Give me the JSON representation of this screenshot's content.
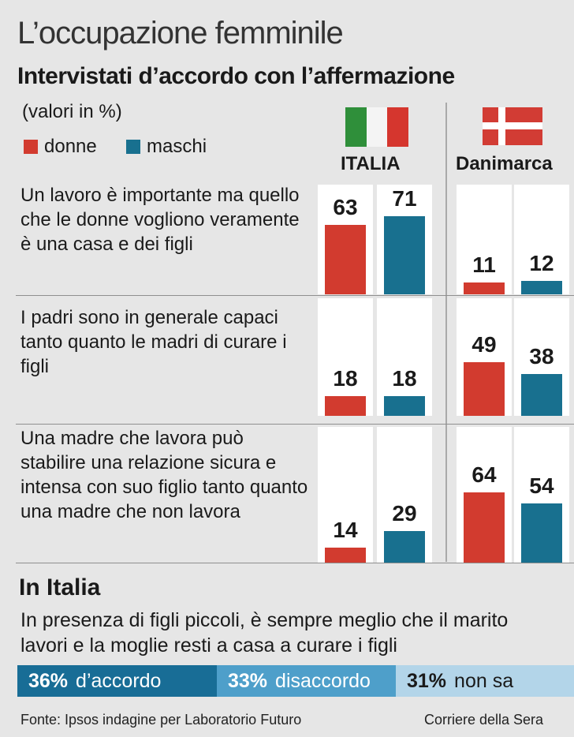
{
  "header": {
    "title": "L’occupazione femminile",
    "subtitle": "Intervistati d’accordo con l’affermazione",
    "unit": "(valori in %)"
  },
  "legend": {
    "donne": "donne",
    "maschi": "maschi"
  },
  "colors": {
    "donne": "#d23b2f",
    "maschi": "#18708f",
    "italy_green": "#2f8f3a",
    "italy_white": "#f4f4f4",
    "italy_red": "#d5362e",
    "dk_red": "#d23c34",
    "dk_white": "#ffffff"
  },
  "chart_data": {
    "type": "bar",
    "title": "Intervistati d’accordo con l’affermazione",
    "unit": "(valori in %)",
    "groups": [
      "ITALIA",
      "Danimarca"
    ],
    "series": [
      {
        "name": "donne",
        "color": "#d23b2f"
      },
      {
        "name": "maschi",
        "color": "#18708f"
      }
    ],
    "ylim": [
      0,
      100
    ],
    "categories": [
      {
        "label": "Un lavoro è importante ma quello che le donne vogliono veramente è una casa e dei figli",
        "ITALIA": {
          "donne": 63,
          "maschi": 71
        },
        "Danimarca": {
          "donne": 11,
          "maschi": 12
        }
      },
      {
        "label": "I padri sono in generale capaci tanto quanto le madri di curare i figli",
        "ITALIA": {
          "donne": 18,
          "maschi": 18
        },
        "Danimarca": {
          "donne": 49,
          "maschi": 38
        }
      },
      {
        "label": "Una madre che lavora può stabilire una relazione sicura e intensa con suo figlio tanto quanto una madre che non lavora",
        "ITALIA": {
          "donne": 14,
          "maschi": 29
        },
        "Danimarca": {
          "donne": 64,
          "maschi": 54
        }
      }
    ]
  },
  "statements": [
    "Un lavoro è importante ma quello che le donne vogliono veramente è una casa e dei figli",
    "I padri sono in generale capaci tanto quanto le madri di curare i figli",
    "Una madre che lavora può stabilire una relazione sicura e intensa con suo figlio tanto quanto una madre che non lavora"
  ],
  "italy_section": {
    "heading": "In Italia",
    "question": "In presenza di figli piccoli, è sempre meglio che il marito lavori e la moglie resti a casa a curare i figli",
    "accordo": {
      "value": "36%",
      "label": "d’accordo",
      "percent": 36
    },
    "disaccordo": {
      "value": "33%",
      "label": "disaccordo",
      "percent": 33
    },
    "nonsa": {
      "value": "31%",
      "label": "non sa",
      "percent": 31
    }
  },
  "footer": {
    "source": "Fonte: Ipsos indagine per Laboratorio Futuro",
    "credit": "Corriere della Sera"
  }
}
